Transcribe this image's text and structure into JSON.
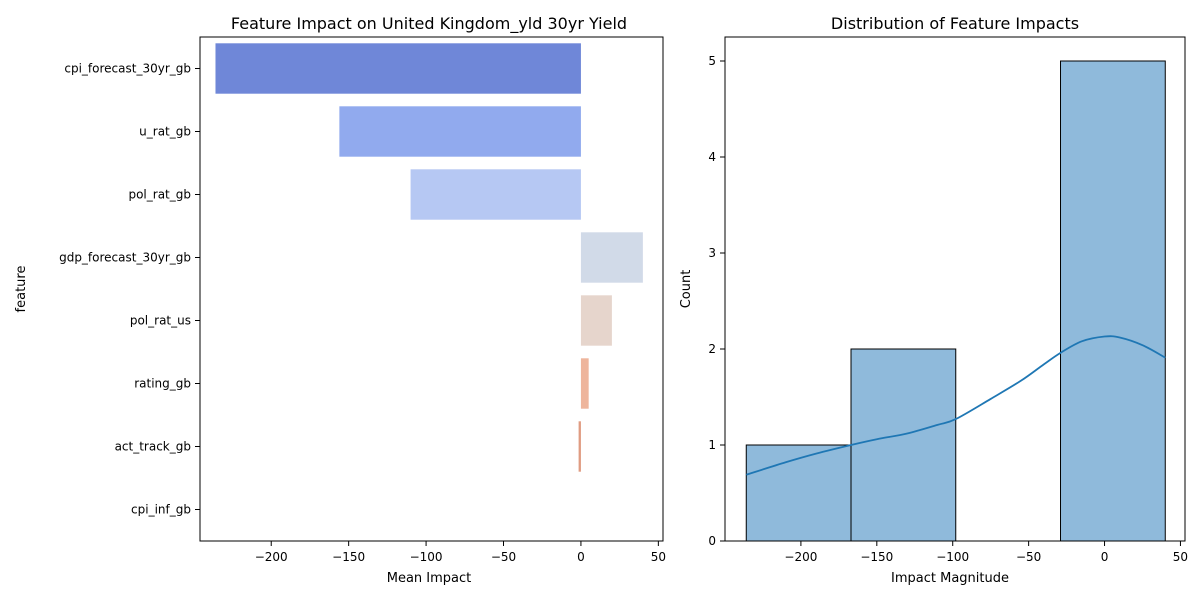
{
  "chart_data": [
    {
      "type": "bar",
      "orientation": "horizontal",
      "title": "Feature Impact on United Kingdom_yld 30yr Yield",
      "xlabel": "Mean Impact",
      "ylabel": "feature",
      "categories": [
        "cpi_forecast_30yr_gb",
        "u_rat_gb",
        "pol_rat_gb",
        "gdp_forecast_30yr_gb",
        "pol_rat_us",
        "rating_gb",
        "act_track_gb",
        "cpi_inf_gb"
      ],
      "values": [
        -236,
        -156,
        -110,
        40,
        20,
        5,
        -1.5,
        0
      ],
      "colors": [
        "#6f87d8",
        "#91aaee",
        "#b6c8f3",
        "#d1dae8",
        "#e6d5cc",
        "#eeb59c",
        "#e09c82",
        "#cc6f5c"
      ],
      "xlim": [
        -246,
        53
      ],
      "xticks": [
        -200,
        -150,
        -100,
        -50,
        0,
        50
      ],
      "xtick_labels": [
        "−200",
        "−150",
        "−100",
        "−50",
        "0",
        "50"
      ],
      "grid": false,
      "legend": "none"
    },
    {
      "type": "histogram",
      "title": "Distribution of Feature Impacts",
      "xlabel": "Impact Magnitude",
      "ylabel": "Count",
      "bins": [
        {
          "start": -236,
          "end": -167,
          "count": 1
        },
        {
          "start": -167,
          "end": -98,
          "count": 2
        },
        {
          "start": -98,
          "end": -29,
          "count": 0
        },
        {
          "start": -29,
          "end": 40,
          "count": 5
        }
      ],
      "kde": {
        "x": [
          -236,
          -210,
          -190,
          -167,
          -150,
          -130,
          -110,
          -98,
          -75,
          -55,
          -40,
          -29,
          -15,
          0,
          10,
          25,
          40
        ],
        "y": [
          0.69,
          0.82,
          0.91,
          1.0,
          1.06,
          1.12,
          1.21,
          1.27,
          1.48,
          1.67,
          1.84,
          1.96,
          2.08,
          2.13,
          2.12,
          2.04,
          1.91
        ]
      },
      "bar_color": "#7fb1d6",
      "line_color": "#1f77b4",
      "xlim": [
        -250,
        53
      ],
      "ylim": [
        0,
        5.25
      ],
      "xticks": [
        -200,
        -150,
        -100,
        -50,
        0,
        50
      ],
      "xtick_labels": [
        "−200",
        "−150",
        "−100",
        "−50",
        "0",
        "50"
      ],
      "yticks": [
        0,
        1,
        2,
        3,
        4,
        5
      ],
      "ytick_labels": [
        "0",
        "1",
        "2",
        "3",
        "4",
        "5"
      ],
      "grid": false,
      "legend": "none"
    }
  ]
}
